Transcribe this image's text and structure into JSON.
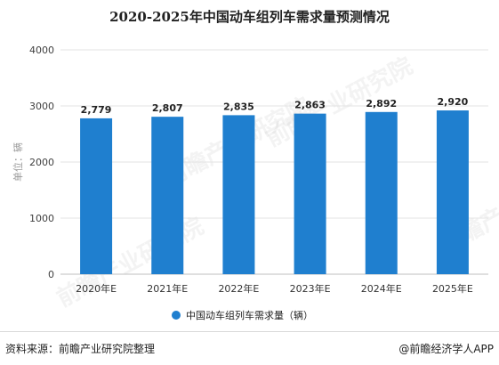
{
  "chart_data": {
    "type": "bar",
    "title": "2020-2025年中国动车组列车需求量预测情况",
    "ylabel": "单位：辆",
    "categories": [
      "2020年E",
      "2021年E",
      "2022年E",
      "2023年E",
      "2024年E",
      "2025年E"
    ],
    "series": [
      {
        "name": "中国动车组列车需求量（辆）",
        "values": [
          2779,
          2807,
          2835,
          2863,
          2892,
          2920
        ],
        "labels": [
          "2,779",
          "2,807",
          "2,835",
          "2,863",
          "2,892",
          "2,920"
        ]
      }
    ],
    "ylim": [
      0,
      4000
    ],
    "yticks": [
      "0",
      "1000",
      "2000",
      "3000",
      "4000"
    ],
    "grid": true,
    "legend_position": "bottom",
    "bar_color": "#1f7fcf"
  },
  "watermark": {
    "text": "前瞻产业研究院"
  },
  "footer": {
    "source": "资料来源：前瞻产业研究院整理",
    "brand": "@前瞻经济学人APP"
  }
}
